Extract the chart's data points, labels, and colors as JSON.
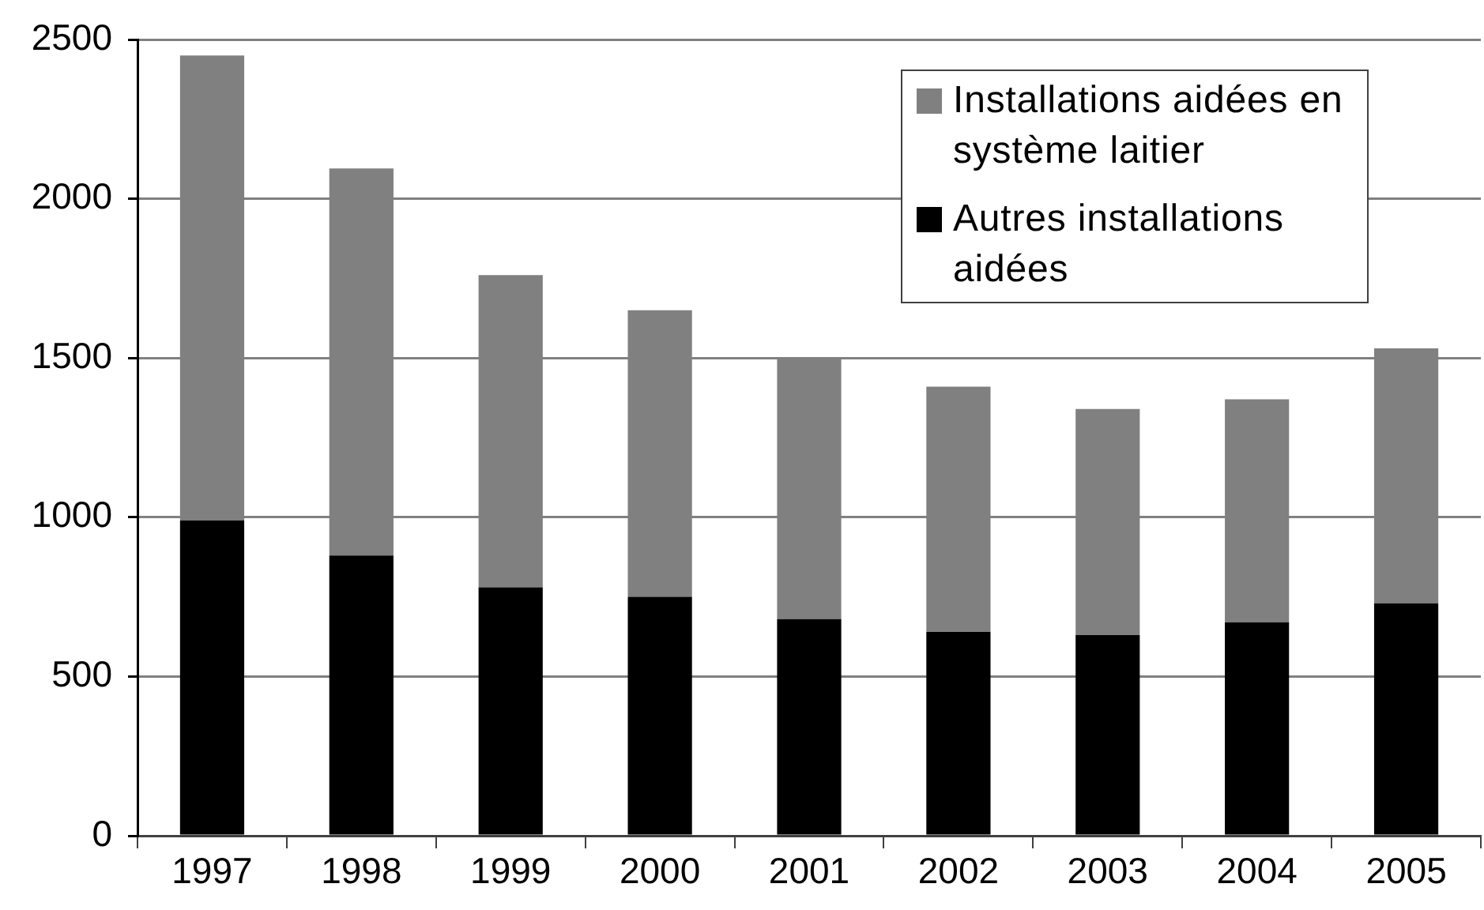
{
  "chart_data": {
    "type": "bar",
    "stacked": true,
    "categories": [
      "1997",
      "1998",
      "1999",
      "2000",
      "2001",
      "2002",
      "2003",
      "2004",
      "2005"
    ],
    "series": [
      {
        "name": "Autres installations aidées",
        "color": "#000000",
        "values": [
          990,
          880,
          780,
          750,
          680,
          640,
          630,
          670,
          730
        ]
      },
      {
        "name": "Installations aidées en système laitier",
        "color": "#808080",
        "values": [
          1460,
          1215,
          980,
          900,
          820,
          770,
          710,
          700,
          800
        ]
      }
    ],
    "ylim": [
      0,
      2500
    ],
    "yticks": [
      0,
      500,
      1000,
      1500,
      2000,
      2500
    ],
    "grid": "y",
    "legend": "top right"
  }
}
